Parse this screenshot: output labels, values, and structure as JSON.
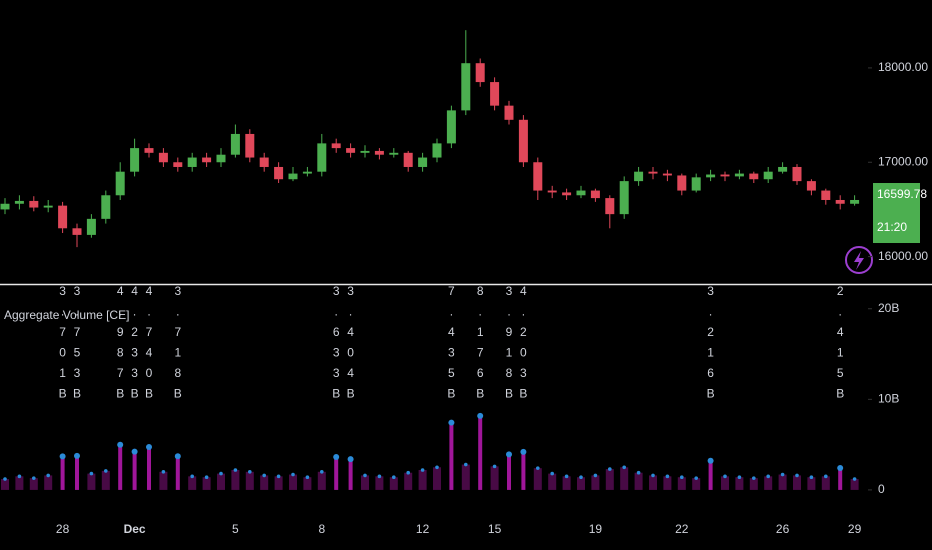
{
  "chart_data": [
    {
      "type": "candlestick",
      "open": [
        16500,
        16560,
        16590,
        16520,
        16540,
        16300,
        16230,
        16400,
        16650,
        16900,
        17150,
        17100,
        17000,
        16950,
        17050,
        17000,
        17080,
        17300,
        17050,
        16950,
        16820,
        16880,
        16900,
        17200,
        17150,
        17100,
        17120,
        17080,
        17100,
        16950,
        17050,
        17200,
        17550,
        18050,
        17850,
        17600,
        17450,
        17000,
        16700,
        16680,
        16650,
        16700,
        16620,
        16450,
        16800,
        16900,
        16880,
        16860,
        16700,
        16840,
        16870,
        16850,
        16880,
        16820,
        16900,
        16950,
        16800,
        16700,
        16600,
        16560
      ],
      "high": [
        16620,
        16650,
        16640,
        16600,
        16580,
        16350,
        16450,
        16700,
        17000,
        17250,
        17200,
        17150,
        17050,
        17100,
        17100,
        17150,
        17400,
        17350,
        17100,
        17000,
        16950,
        16950,
        17300,
        17250,
        17200,
        17180,
        17150,
        17150,
        17120,
        17100,
        17250,
        17600,
        18400,
        18100,
        17900,
        17650,
        17500,
        17050,
        16750,
        16720,
        16750,
        16720,
        16650,
        16850,
        16950,
        16950,
        16920,
        16880,
        16880,
        16920,
        16900,
        16920,
        16900,
        16950,
        17000,
        16980,
        16820,
        16720,
        16650,
        16650
      ],
      "low": [
        16450,
        16500,
        16480,
        16470,
        16250,
        16100,
        16200,
        16350,
        16600,
        16850,
        17050,
        16950,
        16900,
        16900,
        16950,
        16950,
        17050,
        17000,
        16900,
        16780,
        16800,
        16850,
        16850,
        17100,
        17050,
        17050,
        17030,
        17050,
        16900,
        16900,
        17000,
        17150,
        17500,
        17800,
        17550,
        17400,
        16950,
        16600,
        16620,
        16600,
        16620,
        16580,
        16300,
        16400,
        16750,
        16820,
        16800,
        16650,
        16680,
        16800,
        16800,
        16820,
        16780,
        16780,
        16880,
        16760,
        16650,
        16550,
        16500,
        16540
      ],
      "close": [
        16560,
        16590,
        16520,
        16540,
        16300,
        16230,
        16400,
        16650,
        16900,
        17150,
        17100,
        17000,
        16950,
        17050,
        17000,
        17080,
        17300,
        17050,
        16950,
        16820,
        16880,
        16900,
        17200,
        17150,
        17100,
        17120,
        17080,
        17100,
        16950,
        17050,
        17200,
        17550,
        18050,
        17850,
        17600,
        17450,
        17000,
        16700,
        16680,
        16650,
        16700,
        16620,
        16450,
        16800,
        16900,
        16880,
        16860,
        16700,
        16840,
        16870,
        16850,
        16880,
        16820,
        16900,
        16950,
        16800,
        16700,
        16600,
        16560,
        16600
      ],
      "up_color": "#4caf50",
      "down_color": "#e0485a",
      "ylim": [
        15720,
        18720
      ],
      "yticks": [
        {
          "value": 16000,
          "label": "16000.00"
        },
        {
          "value": 17000,
          "label": "17000.00"
        },
        {
          "value": 18000,
          "label": "18000.00"
        }
      ],
      "last_price": 16599.78,
      "countdown": "21:20",
      "last_color": "#4caf50"
    },
    {
      "type": "bar",
      "title": "Aggregate Volume [CE]",
      "categories": [
        null,
        null,
        null,
        null,
        "28",
        null,
        null,
        null,
        null,
        "Dec",
        null,
        null,
        null,
        null,
        null,
        null,
        "5",
        null,
        null,
        null,
        null,
        null,
        "8",
        null,
        null,
        null,
        null,
        null,
        null,
        "12",
        null,
        null,
        null,
        null,
        "15",
        null,
        null,
        null,
        null,
        null,
        null,
        "19",
        null,
        null,
        null,
        null,
        null,
        "22",
        null,
        null,
        null,
        null,
        null,
        null,
        "26",
        null,
        null,
        null,
        null,
        "29"
      ],
      "values": [
        1.2,
        1.5,
        1.3,
        1.6,
        3.701,
        3.753,
        1.8,
        2.1,
        4.987,
        4.233,
        4.74,
        2.0,
        3.718,
        1.5,
        1.4,
        1.8,
        2.2,
        2.0,
        1.6,
        1.5,
        1.7,
        1.4,
        2.0,
        3.633,
        3.404,
        1.6,
        1.5,
        1.4,
        1.9,
        2.2,
        2.5,
        7.435,
        2.8,
        8.176,
        2.6,
        3.918,
        4.203,
        2.4,
        1.8,
        1.5,
        1.4,
        1.6,
        2.3,
        2.5,
        1.9,
        1.6,
        1.5,
        1.4,
        1.3,
        3.216,
        1.5,
        1.4,
        1.3,
        1.5,
        1.7,
        1.6,
        1.4,
        1.5,
        2.415,
        1.2
      ],
      "value_labels": [
        null,
        null,
        null,
        null,
        "3.701B",
        "3.753B",
        null,
        null,
        "4.987B",
        "4.233B",
        "4.740B",
        null,
        "3.718B",
        null,
        null,
        null,
        null,
        null,
        null,
        null,
        null,
        null,
        null,
        "3.633B",
        "3.404B",
        null,
        null,
        null,
        null,
        null,
        null,
        "7.435B",
        null,
        "8.176B",
        null,
        "3.918B",
        "4.203B",
        null,
        null,
        null,
        null,
        null,
        null,
        null,
        null,
        null,
        null,
        null,
        null,
        "3.216B",
        null,
        null,
        null,
        null,
        null,
        null,
        null,
        null,
        "2.415B",
        null
      ],
      "color": "#a0169a",
      "dot_color": "#2b8bd8",
      "ylim": [
        -3.1,
        22.4
      ],
      "yticks": [
        0,
        {
          "value": 10,
          "label": "10B"
        },
        {
          "value": 20,
          "label": "20B"
        }
      ]
    }
  ]
}
